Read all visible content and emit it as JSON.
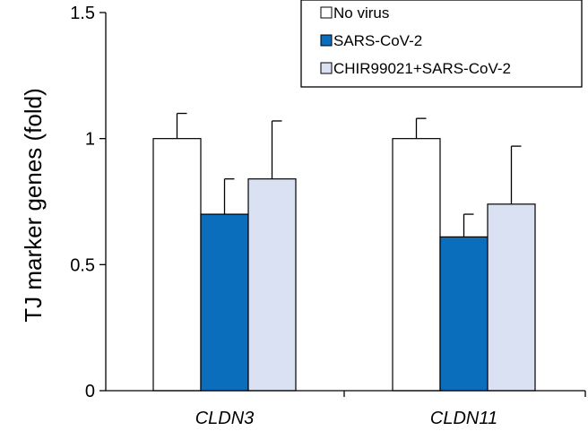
{
  "chart_data": {
    "type": "bar",
    "title": "",
    "xlabel": "",
    "ylabel": "TJ marker genes (fold)",
    "ylim": [
      0,
      1.5
    ],
    "yticks": [
      0,
      0.5,
      1,
      1.5
    ],
    "ytick_labels": [
      "0",
      "0.5",
      "1",
      "1.5"
    ],
    "categories": [
      "CLDN3",
      "CLDN11"
    ],
    "grid": false,
    "legend_position": "top-right",
    "series": [
      {
        "name": "No virus",
        "values": [
          1.0,
          1.0
        ],
        "errors": [
          0.1,
          0.08
        ],
        "color": "#ffffff"
      },
      {
        "name": "SARS-CoV-2",
        "values": [
          0.7,
          0.61
        ],
        "errors": [
          0.14,
          0.09
        ],
        "color": "#0a6ebd"
      },
      {
        "name": "CHIR99021+SARS-CoV-2",
        "values": [
          0.84,
          0.74
        ],
        "errors": [
          0.23,
          0.23
        ],
        "color": "#d9e1f2"
      }
    ]
  }
}
